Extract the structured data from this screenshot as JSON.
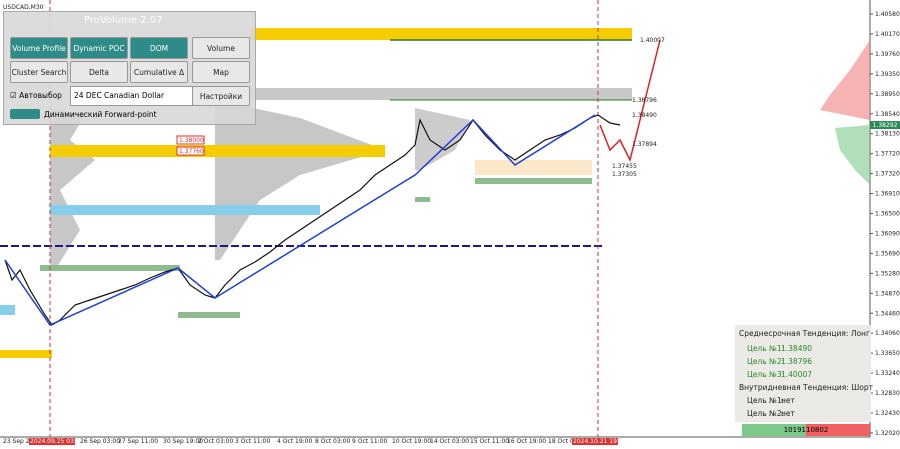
{
  "symbol": "USDCAD,M30",
  "panel": {
    "title": "ProVolume 2.07",
    "buttons": [
      "Volume Profile",
      "Dynamic POC",
      "DOM",
      "Volume",
      "Cluster Search",
      "Delta",
      "Cumulative Δ",
      "Map"
    ],
    "autoselect": "Автовыбор",
    "instrument": "24 DEC Canadian Dollar",
    "settings": "Настройки",
    "forward_point": "Динамический Forward-point"
  },
  "price_axis": [
    "1.40580",
    "1.40170",
    "1.39760",
    "1.39350",
    "1.38950",
    "1.38540",
    "1.38130",
    "1.37720",
    "1.37320",
    "1.36910",
    "1.36500",
    "1.36090",
    "1.35690",
    "1.35280",
    "1.34870",
    "1.34460",
    "1.34060",
    "1.33650",
    "1.33240",
    "1.32830",
    "1.32430",
    "1.32020"
  ],
  "current_price": "1.38292",
  "time_axis": [
    "23 Sep 2024",
    "2024.09.25 03:00",
    "26 Sep 03:00",
    "27 Sep 11:00",
    "30 Sep 19:00",
    "2 Oct 03:00",
    "3 Oct 11:00",
    "4 Oct 19:00",
    "8 Oct 03:00",
    "9 Oct 11:00",
    "10 Oct 19:00",
    "14 Oct 03:00",
    "15 Oct 11:00",
    "16 Oct 19:00",
    "18 Oct 03:00",
    "2024.10.21 19:00"
  ],
  "levels": [
    "1.40007",
    "1.38796",
    "1.38490",
    "1.37894",
    "1.37455",
    "1.37305"
  ],
  "red_levels": [
    "1.38000",
    "1.37760"
  ],
  "info": {
    "mid_trend": "Среднесрочная Тенденция: Лонг",
    "mid_targets": [
      {
        "label": "Цель №1:",
        "value": "1.38490"
      },
      {
        "label": "Цель №2:",
        "value": "1.38796"
      },
      {
        "label": "Цель №3:",
        "value": "1.40007"
      }
    ],
    "intraday_trend": "Внутридневная Тенденция: Шорт",
    "intraday_targets": [
      {
        "label": "Цель №1:",
        "value": "нет"
      },
      {
        "label": "Цель №2:",
        "value": "нет"
      }
    ],
    "buy_volume": "10191",
    "sell_volume": "10802"
  }
}
